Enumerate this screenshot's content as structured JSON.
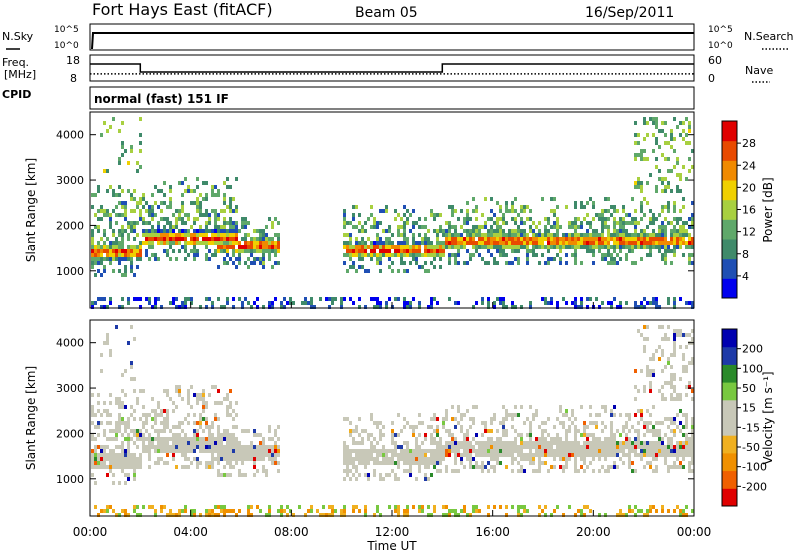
{
  "header": {
    "title": "Fort Hays East (fitACF)",
    "beam": "Beam 05",
    "date": "16/Sep/2011"
  },
  "top_panels": {
    "nsky_label": "N.Sky",
    "nsearch_label": "N.Search",
    "freq_label_1": "Freq.",
    "freq_label_2": "[MHz]",
    "nave_label": "Nave",
    "cpid_label": "CPID",
    "cpid_value": "normal (fast) 151 IF",
    "noise_ticks_left": [
      "10^5",
      "10^0"
    ],
    "noise_ticks_right": [
      "10^5",
      "10^0"
    ],
    "freq_ticks": [
      "18",
      "8"
    ],
    "nave_ticks": [
      "60",
      "0"
    ]
  },
  "colors": {
    "power_scale": [
      "#0000ee",
      "#1f4fb4",
      "#3f8a6a",
      "#5fa86a",
      "#a8d040",
      "#f0d000",
      "#f08a00",
      "#e84a00",
      "#e00000"
    ],
    "velocity_scale": [
      "#e00000",
      "#f06000",
      "#f09000",
      "#f0b020",
      "#c8c8b8",
      "#c8c8b8",
      "#78c840",
      "#2a8a2a",
      "#1e3aa8",
      "#0000b0"
    ]
  },
  "chart_data": [
    {
      "type": "heatmap",
      "name": "power",
      "xlabel": "Time UT",
      "ylabel": "Slant Range [km]",
      "x_ticks": [
        "00:00",
        "04:00",
        "08:00",
        "12:00",
        "16:00",
        "20:00",
        "00:00"
      ],
      "y_ticks": [
        1000,
        2000,
        3000,
        4000
      ],
      "xlim_hours": [
        0,
        24
      ],
      "ylim_km": [
        180,
        4500
      ],
      "colorbar_label": "Power [dB]",
      "colorbar_ticks": [
        4,
        8,
        12,
        16,
        20,
        24,
        28
      ],
      "colorbar_range": [
        0,
        30
      ],
      "bands": [
        {
          "t0": 0.0,
          "t1": 2.0,
          "r_center": 1450,
          "r_top": 3000,
          "level": "high"
        },
        {
          "t0": 2.0,
          "t1": 5.8,
          "r_center": 1750,
          "r_top": 3100,
          "level": "high"
        },
        {
          "t0": 5.0,
          "t1": 7.5,
          "r_center": 1600,
          "r_top": 2200,
          "level": "medium"
        },
        {
          "t0": 10.0,
          "t1": 14.0,
          "r_center": 1500,
          "r_top": 2500,
          "level": "medium"
        },
        {
          "t0": 14.0,
          "t1": 24.0,
          "r_center": 1700,
          "r_top": 2700,
          "level": "high"
        }
      ]
    },
    {
      "type": "heatmap",
      "name": "velocity",
      "xlabel": "Time UT",
      "ylabel": "Slant Range [km]",
      "x_ticks": [
        "00:00",
        "04:00",
        "08:00",
        "12:00",
        "16:00",
        "20:00",
        "00:00"
      ],
      "y_ticks": [
        1000,
        2000,
        3000,
        4000
      ],
      "xlim_hours": [
        0,
        24
      ],
      "ylim_km": [
        180,
        4500
      ],
      "colorbar_label": "Velocity [m s⁻¹]",
      "colorbar_ticks": [
        "200",
        "100",
        "50",
        "15",
        "-15",
        "-50",
        "-100",
        "-200"
      ],
      "colorbar_range": [
        -250,
        250
      ]
    },
    {
      "type": "line",
      "name": "frequency",
      "x_hours": [
        0,
        2.0,
        2.0,
        14.0,
        14.0,
        24
      ],
      "y_mhz": [
        15,
        15,
        11,
        11,
        15,
        15
      ],
      "ylim": [
        8,
        18
      ]
    },
    {
      "type": "line",
      "name": "nave",
      "x_hours": [
        0,
        24
      ],
      "y": [
        14,
        14
      ],
      "ylim": [
        0,
        60
      ]
    }
  ]
}
